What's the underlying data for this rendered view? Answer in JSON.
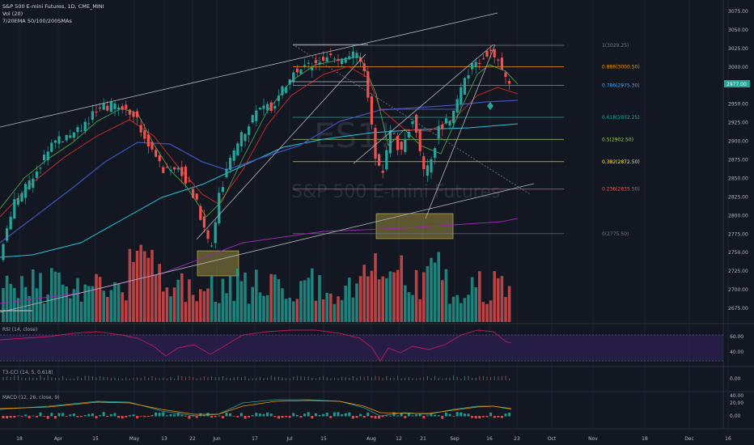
{
  "header": {
    "symbol_line": "S&P 500 E-mini Futures, 1D, CME_MINI",
    "vol_line": "Vol (20)",
    "ma_line": "7/20EMA 50/100/200SMAs"
  },
  "watermark": {
    "ticker": "ES1!",
    "name": "S&P 500 E-mini Futures"
  },
  "panes": {
    "rsi_label": "RSI (14, close)",
    "t3_label": "T3-CCI (14, 5, 0.618)",
    "macd_label": "MACD (12, 26, close, 9)"
  },
  "colors": {
    "background": "#131722",
    "up": "#26a69a",
    "down": "#ef5350",
    "fib": "#787b86",
    "rsi_band": "#2a1f4d"
  },
  "chart_data": {
    "type": "candlestick",
    "price_range": [
      2650,
      3090
    ],
    "y_ticks": [
      2675,
      2700,
      2725,
      2750,
      2775,
      2800,
      2825,
      2850,
      2875,
      2900,
      2925,
      2950,
      2975,
      3000,
      3025,
      3050,
      3075
    ],
    "current_price_label": "2977.00",
    "x_tick_labels": [
      "18",
      "Apr",
      "15",
      "May",
      "13",
      "22",
      "Jun",
      "17",
      "Jul",
      "15",
      "Aug",
      "12",
      "21",
      "Sep",
      "16",
      "23",
      "Oct",
      "Nov",
      "18",
      "Dec",
      "16"
    ],
    "fib_levels": [
      {
        "label": "1(3029.25)",
        "value": 3029.25,
        "color": "#787b86"
      },
      {
        "label": "0.886(3000.50)",
        "value": 3000.5,
        "color": "#ff9800"
      },
      {
        "label": "0.786(2975.30)",
        "value": 2975.3,
        "color": "#42a5f5"
      },
      {
        "label": "0.618(2932.25)",
        "value": 2932.25,
        "color": "#26a69a"
      },
      {
        "label": "0.5(2902.50)",
        "value": 2902.5,
        "color": "#9ccc65"
      },
      {
        "label": "0.382(2872.50)",
        "value": 2872.5,
        "color": "#ffeb3b"
      },
      {
        "label": "0.236(2835.50)",
        "value": 2835.5,
        "color": "#ef5350"
      },
      {
        "label": "0(2775.50)",
        "value": 2775.5,
        "color": "#787b86"
      }
    ],
    "rsi_ticks": [
      "60.00",
      "40.00"
    ],
    "t3_ticks": [
      "0.00"
    ],
    "macd_ticks": [
      "40.00",
      "20.00",
      "0.00"
    ]
  }
}
